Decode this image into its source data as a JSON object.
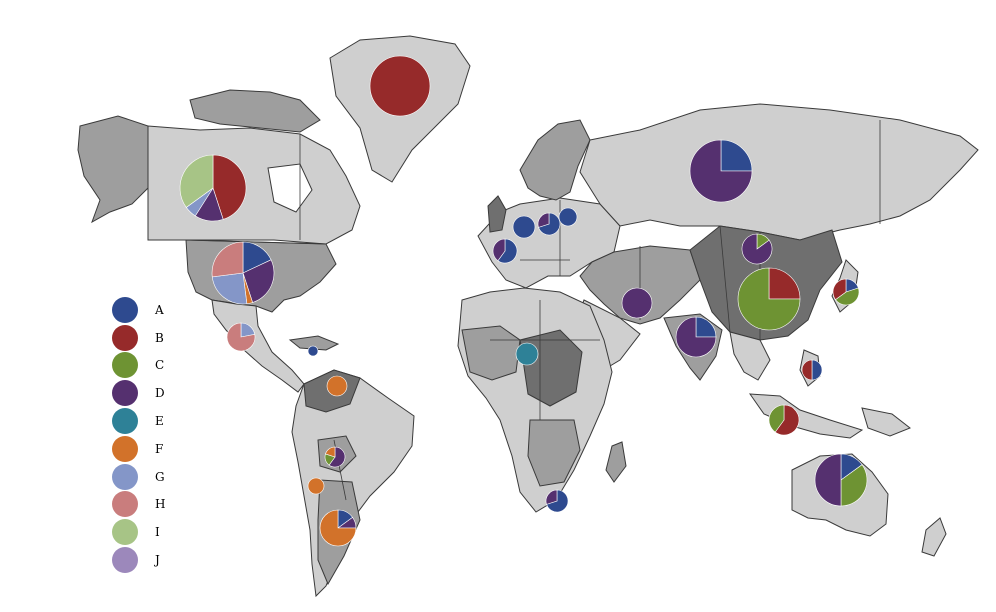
{
  "legend": {
    "items": [
      {
        "label": "A",
        "color": "#2e4a8f"
      },
      {
        "label": "B",
        "color": "#962a2a"
      },
      {
        "label": "C",
        "color": "#6e9333"
      },
      {
        "label": "D",
        "color": "#55306f"
      },
      {
        "label": "E",
        "color": "#2e8197"
      },
      {
        "label": "F",
        "color": "#d2722a"
      },
      {
        "label": "G",
        "color": "#8496c8"
      },
      {
        "label": "H",
        "color": "#c97d7d"
      },
      {
        "label": "I",
        "color": "#a7c486"
      },
      {
        "label": "J",
        "color": "#9c88bb"
      }
    ]
  },
  "pies": [
    {
      "region": "greenland",
      "parts": {
        "B": 1
      }
    },
    {
      "region": "canada",
      "parts": {
        "B": 0.45,
        "D": 0.14,
        "G": 0.06,
        "I": 0.35
      }
    },
    {
      "region": "usa",
      "parts": {
        "A": 0.18,
        "D": 0.27,
        "F": 0.03,
        "G": 0.25,
        "H": 0.27
      }
    },
    {
      "region": "mexico",
      "parts": {
        "G": 0.22,
        "H": 0.78
      }
    },
    {
      "region": "cuba",
      "parts": {
        "A": 1
      }
    },
    {
      "region": "venezuela",
      "parts": {
        "F": 1
      }
    },
    {
      "region": "bolivia",
      "parts": {
        "D": 0.6,
        "C": 0.2,
        "F": 0.2
      }
    },
    {
      "region": "chile",
      "parts": {
        "F": 1
      }
    },
    {
      "region": "argentina",
      "parts": {
        "A": 0.15,
        "D": 0.1,
        "F": 0.75
      }
    },
    {
      "region": "russia",
      "parts": {
        "A": 0.25,
        "D": 0.75
      }
    },
    {
      "region": "china",
      "parts": {
        "B": 0.25,
        "C": 0.75
      }
    },
    {
      "region": "mongolia",
      "parts": {
        "C": 0.15,
        "D": 0.85
      }
    },
    {
      "region": "india",
      "parts": {
        "A": 0.25,
        "D": 0.75
      }
    },
    {
      "region": "iran",
      "parts": {
        "D": 1
      }
    },
    {
      "region": "japan",
      "parts": {
        "A": 0.2,
        "C": 0.45,
        "B": 0.35
      }
    },
    {
      "region": "indonesia",
      "parts": {
        "B": 0.6,
        "C": 0.4
      }
    },
    {
      "region": "philippines",
      "parts": {
        "A": 0.5,
        "B": 0.5
      }
    },
    {
      "region": "australia",
      "parts": {
        "A": 0.15,
        "C": 0.35,
        "D": 0.5
      }
    },
    {
      "region": "uk",
      "parts": {
        "A": 1
      }
    },
    {
      "region": "france",
      "parts": {
        "A": 0.6,
        "D": 0.4
      }
    },
    {
      "region": "germany",
      "parts": {
        "A": 0.7,
        "D": 0.3
      }
    },
    {
      "region": "poland",
      "parts": {
        "A": 1
      }
    },
    {
      "region": "nigeria",
      "parts": {
        "E": 1
      }
    },
    {
      "region": "south_africa",
      "parts": {
        "A": 0.7,
        "D": 0.3
      }
    }
  ]
}
